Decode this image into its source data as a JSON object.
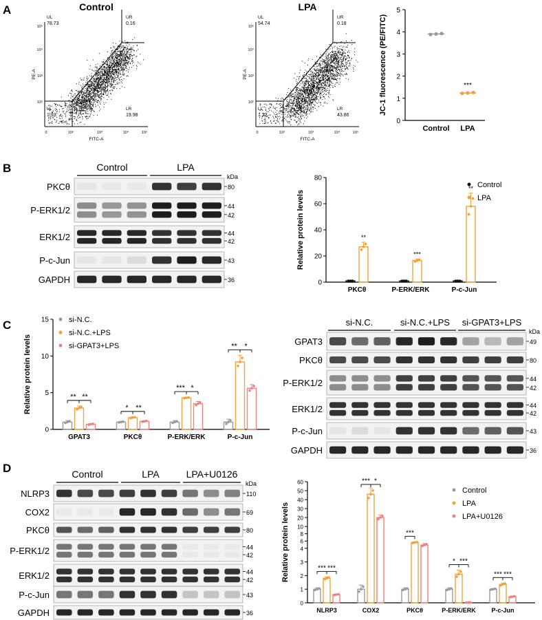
{
  "colors": {
    "control": "#9a9a9a",
    "lpa": "#f5a03a",
    "pink": "#f08080",
    "black": "#111111",
    "blot": "#1a1a1a"
  },
  "panels": {
    "a": "A",
    "b": "B",
    "c": "C",
    "d": "D"
  },
  "panelA": {
    "flow": [
      {
        "title": "Control",
        "ul": "78.73",
        "ur": "0.16",
        "ll": "1.93",
        "lr": "19.98",
        "ul_label": "UL",
        "ur_label": "UR",
        "ll_label": "LL",
        "lr_label": "LR",
        "xlabel": "FITC-A",
        "ylabel": "PE-A"
      },
      {
        "title": "LPA",
        "ul": "54.74",
        "ur": "0.18",
        "ll": "1.22",
        "lr": "43.86",
        "ul_label": "UL",
        "ur_label": "UR",
        "ll_label": "LL",
        "lr_label": "LR",
        "xlabel": "FITC-A",
        "ylabel": "PE-A"
      }
    ],
    "x_ticks": [
      "0",
      "10²",
      "10³",
      "10⁴",
      "10⁵"
    ],
    "y_ticks": [
      "10²",
      "10³",
      "10⁴",
      "10⁵"
    ]
  },
  "blotB": {
    "groups": [
      "Control",
      "LPA"
    ],
    "kda": "kDa",
    "rows": [
      {
        "label": "PKCθ",
        "mw": [
          "80"
        ]
      },
      {
        "label": "P-ERK1/2",
        "mw": [
          "44",
          "42"
        ]
      },
      {
        "label": "ERK1/2",
        "mw": [
          "44",
          "42"
        ]
      },
      {
        "label": "P-c-Jun",
        "mw": [
          "43"
        ]
      },
      {
        "label": "GAPDH",
        "mw": [
          "36"
        ]
      }
    ]
  },
  "blotC": {
    "groups": [
      "si-N.C.",
      "si-N.C.+LPS",
      "si-GPAT3+LPS"
    ],
    "kda": "kDa",
    "rows": [
      {
        "label": "GPAT3",
        "mw": [
          "49"
        ]
      },
      {
        "label": "PKCθ",
        "mw": [
          "80"
        ]
      },
      {
        "label": "P-ERK1/2",
        "mw": [
          "44",
          "42"
        ]
      },
      {
        "label": "ERK1/2",
        "mw": [
          "44",
          "42"
        ]
      },
      {
        "label": "P-c-Jun",
        "mw": [
          "43"
        ]
      },
      {
        "label": "GAPDH",
        "mw": [
          "36"
        ]
      }
    ]
  },
  "blotD": {
    "groups": [
      "Control",
      "LPA",
      "LPA+U0126"
    ],
    "kda": "kDa",
    "rows": [
      {
        "label": "NLRP3",
        "mw": [
          "110"
        ]
      },
      {
        "label": "COX2",
        "mw": [
          "69"
        ]
      },
      {
        "label": "PKCθ",
        "mw": [
          "80"
        ]
      },
      {
        "label": "P-ERK1/2",
        "mw": [
          "44",
          "42"
        ]
      },
      {
        "label": "ERK1/2",
        "mw": [
          "44",
          "42"
        ]
      },
      {
        "label": "P-c-Jun",
        "mw": [
          "43"
        ]
      },
      {
        "label": "GAPDH",
        "mw": [
          "36"
        ]
      }
    ]
  },
  "chart_data": [
    {
      "id": "A",
      "type": "scatter",
      "title": "",
      "xlabel": "",
      "ylabel": "JC-1 fluorescence (PE/FITC)",
      "ylim": [
        0,
        5
      ],
      "yticks": [
        0,
        1,
        2,
        3,
        4,
        5
      ],
      "categories": [
        "Control",
        "LPA"
      ],
      "series": [
        {
          "name": "Control",
          "color": "#9a9a9a",
          "points": [
            3.88,
            3.9,
            3.92
          ],
          "mean": 3.9
        },
        {
          "name": "LPA",
          "color": "#f5a03a",
          "points": [
            1.22,
            1.24,
            1.26
          ],
          "mean": 1.24
        }
      ],
      "annotations": [
        {
          "category": "LPA",
          "text": "***"
        }
      ]
    },
    {
      "id": "B",
      "type": "bar",
      "xlabel": "",
      "ylabel": "Relative protein levels",
      "ylim": [
        0,
        80
      ],
      "yticks": [
        0,
        20,
        40,
        60,
        80
      ],
      "categories": [
        "PKCθ",
        "P-ERK/ERK",
        "P-c-Jun"
      ],
      "legend": [
        "Control",
        "LPA"
      ],
      "legend_position": "top-right",
      "series": [
        {
          "name": "Control",
          "color": "#111111",
          "values": [
            1,
            1,
            1
          ],
          "error": [
            0,
            0,
            0
          ]
        },
        {
          "name": "LPA",
          "color": "#f5a03a",
          "values": [
            27,
            16.5,
            58
          ],
          "error": [
            3.5,
            1.2,
            10
          ]
        }
      ],
      "annotations": [
        "**",
        "***",
        "**"
      ]
    },
    {
      "id": "C",
      "type": "bar",
      "xlabel": "",
      "ylabel": "Relative protein levels",
      "ylim": [
        0,
        15
      ],
      "yticks": [
        0,
        5,
        10,
        15
      ],
      "categories": [
        "GPAT3",
        "PKCθ",
        "P-ERK/ERK",
        "P-c-Jun"
      ],
      "legend": [
        "si-N.C.",
        "si-N.C.+LPS",
        "si-GPAT3+LPS"
      ],
      "legend_position": "top-left",
      "series": [
        {
          "name": "si-N.C.",
          "color": "#9a9a9a",
          "values": [
            1,
            1,
            1,
            1
          ],
          "error": [
            0.2,
            0.1,
            0.2,
            0.4
          ]
        },
        {
          "name": "si-N.C.+LPS",
          "color": "#f5a03a",
          "values": [
            2.9,
            1.6,
            4.3,
            9.2
          ],
          "error": [
            0.3,
            0.1,
            0.1,
            0.9
          ]
        },
        {
          "name": "si-GPAT3+LPS",
          "color": "#f08080",
          "values": [
            0.7,
            1.1,
            3.5,
            5.6
          ],
          "error": [
            0.1,
            0.1,
            0.3,
            0.5
          ]
        }
      ],
      "brackets": [
        {
          "category": "GPAT3",
          "left": "**",
          "right": "**"
        },
        {
          "category": "PKCθ",
          "left": "*",
          "right": "**"
        },
        {
          "category": "P-ERK/ERK",
          "left": "***",
          "right": "*"
        },
        {
          "category": "P-c-Jun",
          "left": "**",
          "right": "*"
        }
      ]
    },
    {
      "id": "D",
      "type": "bar",
      "xlabel": "",
      "ylabel": "Relative protein levels",
      "broken_axis": true,
      "yticks": [
        0,
        1,
        2,
        3,
        4,
        6,
        8,
        10,
        20,
        30,
        40,
        50,
        60
      ],
      "categories": [
        "NLRP3",
        "COX2",
        "PKCθ",
        "P-ERK/ERK",
        "P-c-Jun"
      ],
      "legend": [
        "Control",
        "LPA",
        "LPA+U0126"
      ],
      "legend_position": "top-right",
      "series": [
        {
          "name": "Control",
          "color": "#9a9a9a",
          "values": [
            1,
            1,
            1,
            1,
            1
          ],
          "error": [
            0.1,
            0.3,
            0.1,
            0.1,
            0.05
          ]
        },
        {
          "name": "LPA",
          "color": "#f5a03a",
          "values": [
            1.8,
            46,
            5.6,
            2.1,
            1.35
          ],
          "error": [
            0.1,
            7,
            0.2,
            0.3,
            0.1
          ]
        },
        {
          "name": "LPA+U0126",
          "color": "#f08080",
          "values": [
            0.6,
            20,
            4.9,
            0.02,
            0.45
          ],
          "error": [
            0.05,
            3,
            0.4,
            0.01,
            0.05
          ]
        }
      ],
      "brackets": [
        {
          "category": "NLRP3",
          "left": "***",
          "right": "***"
        },
        {
          "category": "COX2",
          "left": "***",
          "right": "*"
        },
        {
          "category": "PKCθ",
          "left": "***",
          "right": ""
        },
        {
          "category": "P-ERK/ERK",
          "left": "*",
          "right": "***"
        },
        {
          "category": "P-c-Jun",
          "left": "***",
          "right": "***"
        }
      ]
    }
  ]
}
